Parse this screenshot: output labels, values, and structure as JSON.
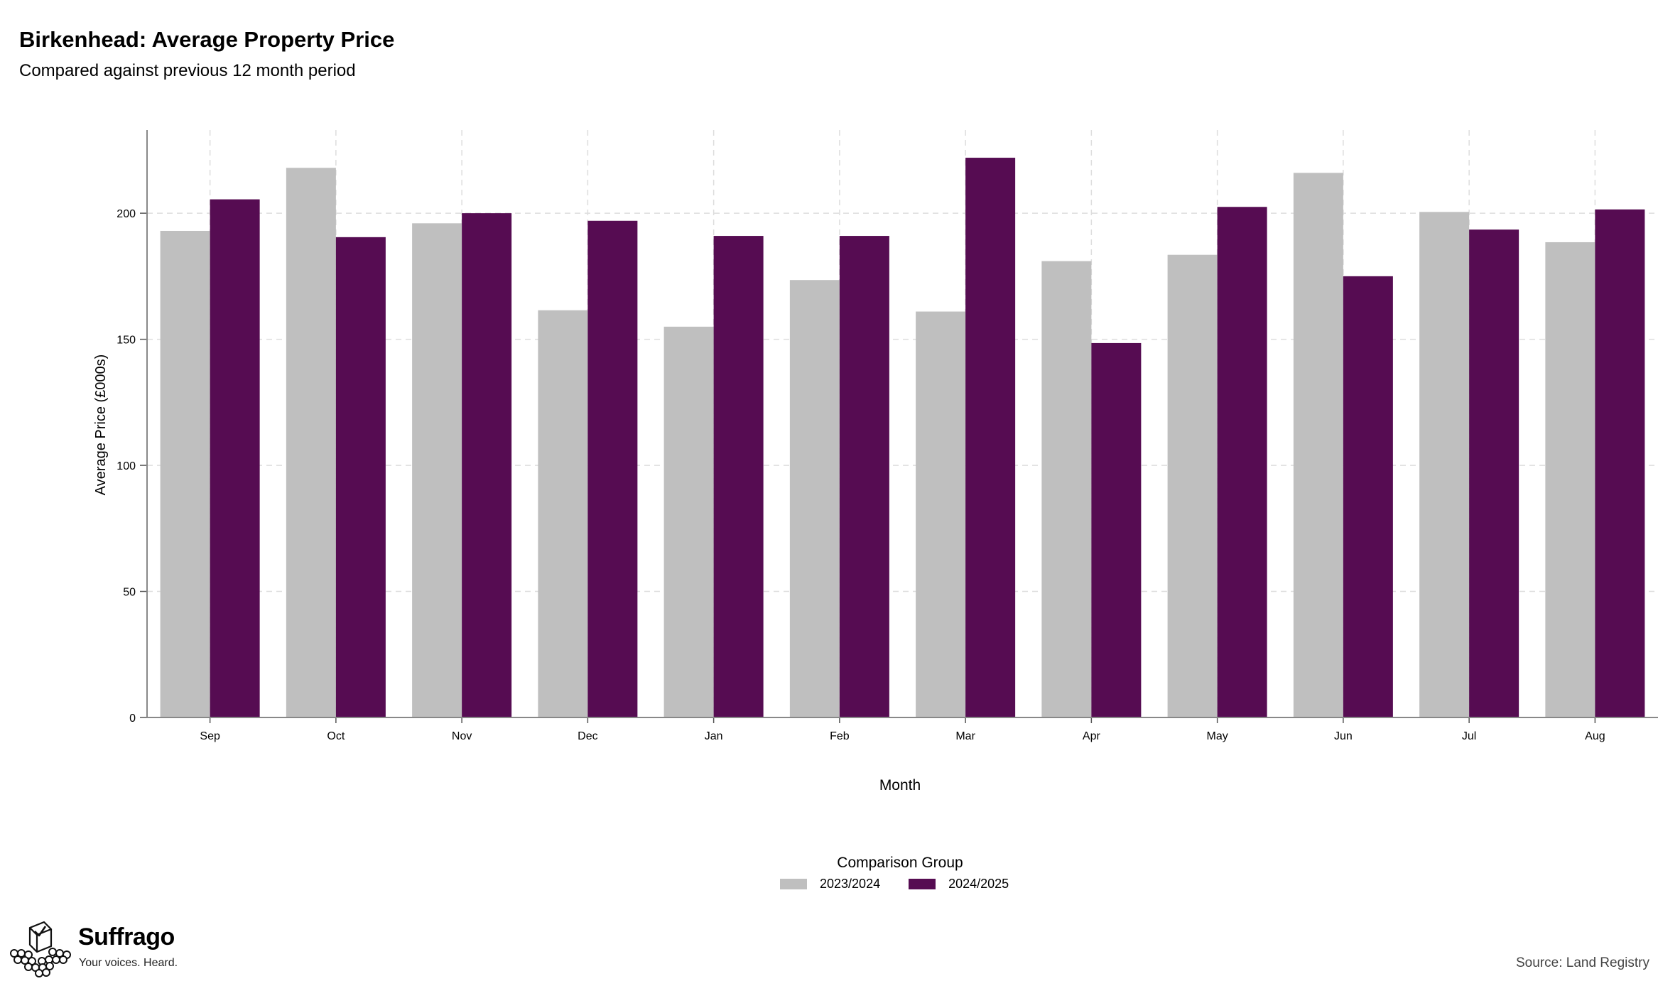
{
  "header": {
    "title": "Birkenhead: Average Property Price",
    "subtitle": "Compared against previous 12 month period"
  },
  "chart_data": {
    "type": "bar",
    "xlabel": "Month",
    "ylabel": "Average Price (£000s)",
    "ylim": [
      0,
      233
    ],
    "yticks": [
      0,
      50,
      100,
      150,
      200
    ],
    "grid": true,
    "categories": [
      "Sep",
      "Oct",
      "Nov",
      "Dec",
      "Jan",
      "Feb",
      "Mar",
      "Apr",
      "May",
      "Jun",
      "Jul",
      "Aug"
    ],
    "series": [
      {
        "name": "2023/2024",
        "color": "#bfbfbf",
        "values": [
          193,
          218,
          196,
          161.5,
          155,
          173.5,
          161,
          181,
          183.5,
          216,
          200.5,
          188.5
        ]
      },
      {
        "name": "2024/2025",
        "color": "#560c52",
        "values": [
          205.5,
          190.5,
          200,
          197,
          191,
          191,
          222,
          148.5,
          202.5,
          175,
          193.5,
          201.5
        ]
      }
    ],
    "legend": {
      "title": "Comparison Group",
      "position": "bottom"
    }
  },
  "branding": {
    "name": "Suffrago",
    "tagline": "Your voices. Heard.",
    "logo_icon": "ballot-box-icon"
  },
  "footer": {
    "source": "Source: Land Registry"
  }
}
